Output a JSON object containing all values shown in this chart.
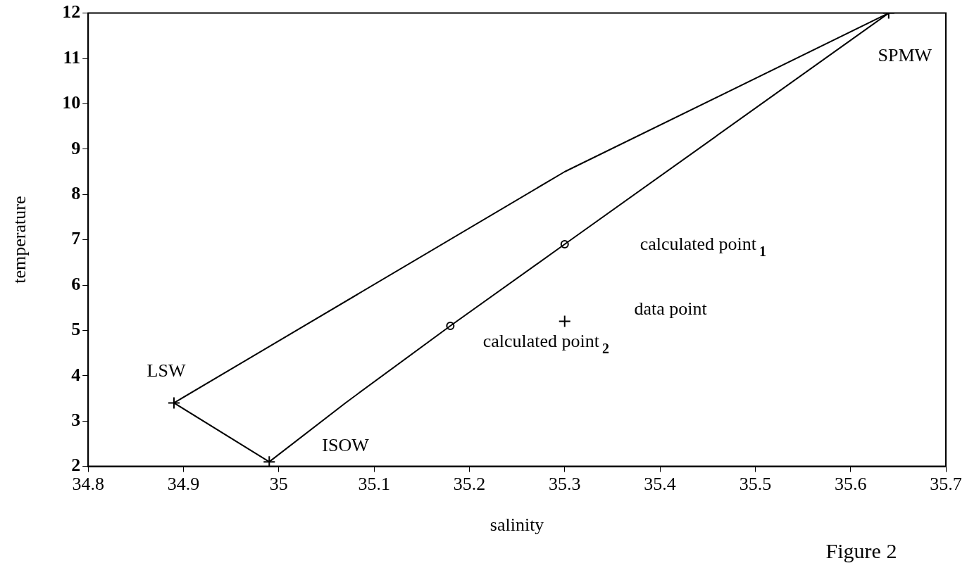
{
  "chart_data": {
    "type": "line",
    "xlabel": "salinity",
    "ylabel": "temperature",
    "xlim": [
      34.8,
      35.7
    ],
    "xticks": [
      34.8,
      34.9,
      35,
      35.1,
      35.2,
      35.3,
      35.4,
      35.5,
      35.6,
      35.7
    ],
    "ylim": [
      2,
      12
    ],
    "yticks": [
      2,
      3,
      4,
      5,
      6,
      7,
      8,
      9,
      10,
      11,
      12
    ],
    "grid": false,
    "legend": false,
    "line_style": "solid",
    "series": [
      {
        "marker": "none",
        "color": "#000000",
        "x": [
          34.89,
          35.3,
          35.64
        ],
        "values": [
          3.4,
          8.5,
          12
        ]
      },
      {
        "marker": "none",
        "color": "#000000",
        "x": [
          34.89,
          34.99,
          35.07,
          35.18,
          35.3,
          35.64
        ],
        "values": [
          3.4,
          2.1,
          3.4,
          5.1,
          6.9,
          12
        ]
      },
      {
        "type": "scatter",
        "marker": "cross",
        "color": "#000000",
        "x": [
          34.89,
          34.99,
          35.64
        ],
        "values": [
          3.4,
          2.1,
          12
        ]
      },
      {
        "type": "scatter",
        "marker": "circle",
        "color": "#000000",
        "x": [
          35.18,
          35.3
        ],
        "values": [
          5.1,
          6.9
        ]
      },
      {
        "type": "scatter",
        "marker": "cross",
        "color": "#000000",
        "x": [
          35.3
        ],
        "values": [
          5.2
        ]
      }
    ],
    "annotations": [
      {
        "text": "LSW",
        "x": 34.89,
        "y": 3.4
      },
      "ISOW",
      {
        "text": "SPMW",
        "x": 35.64,
        "y": 12
      },
      "calculated point$_{1}$",
      "data point",
      {
        "text": "calculated point$_{2}$",
        "x": 35.18,
        "y": 5.1
      },
      "Figure 2"
    ]
  }
}
